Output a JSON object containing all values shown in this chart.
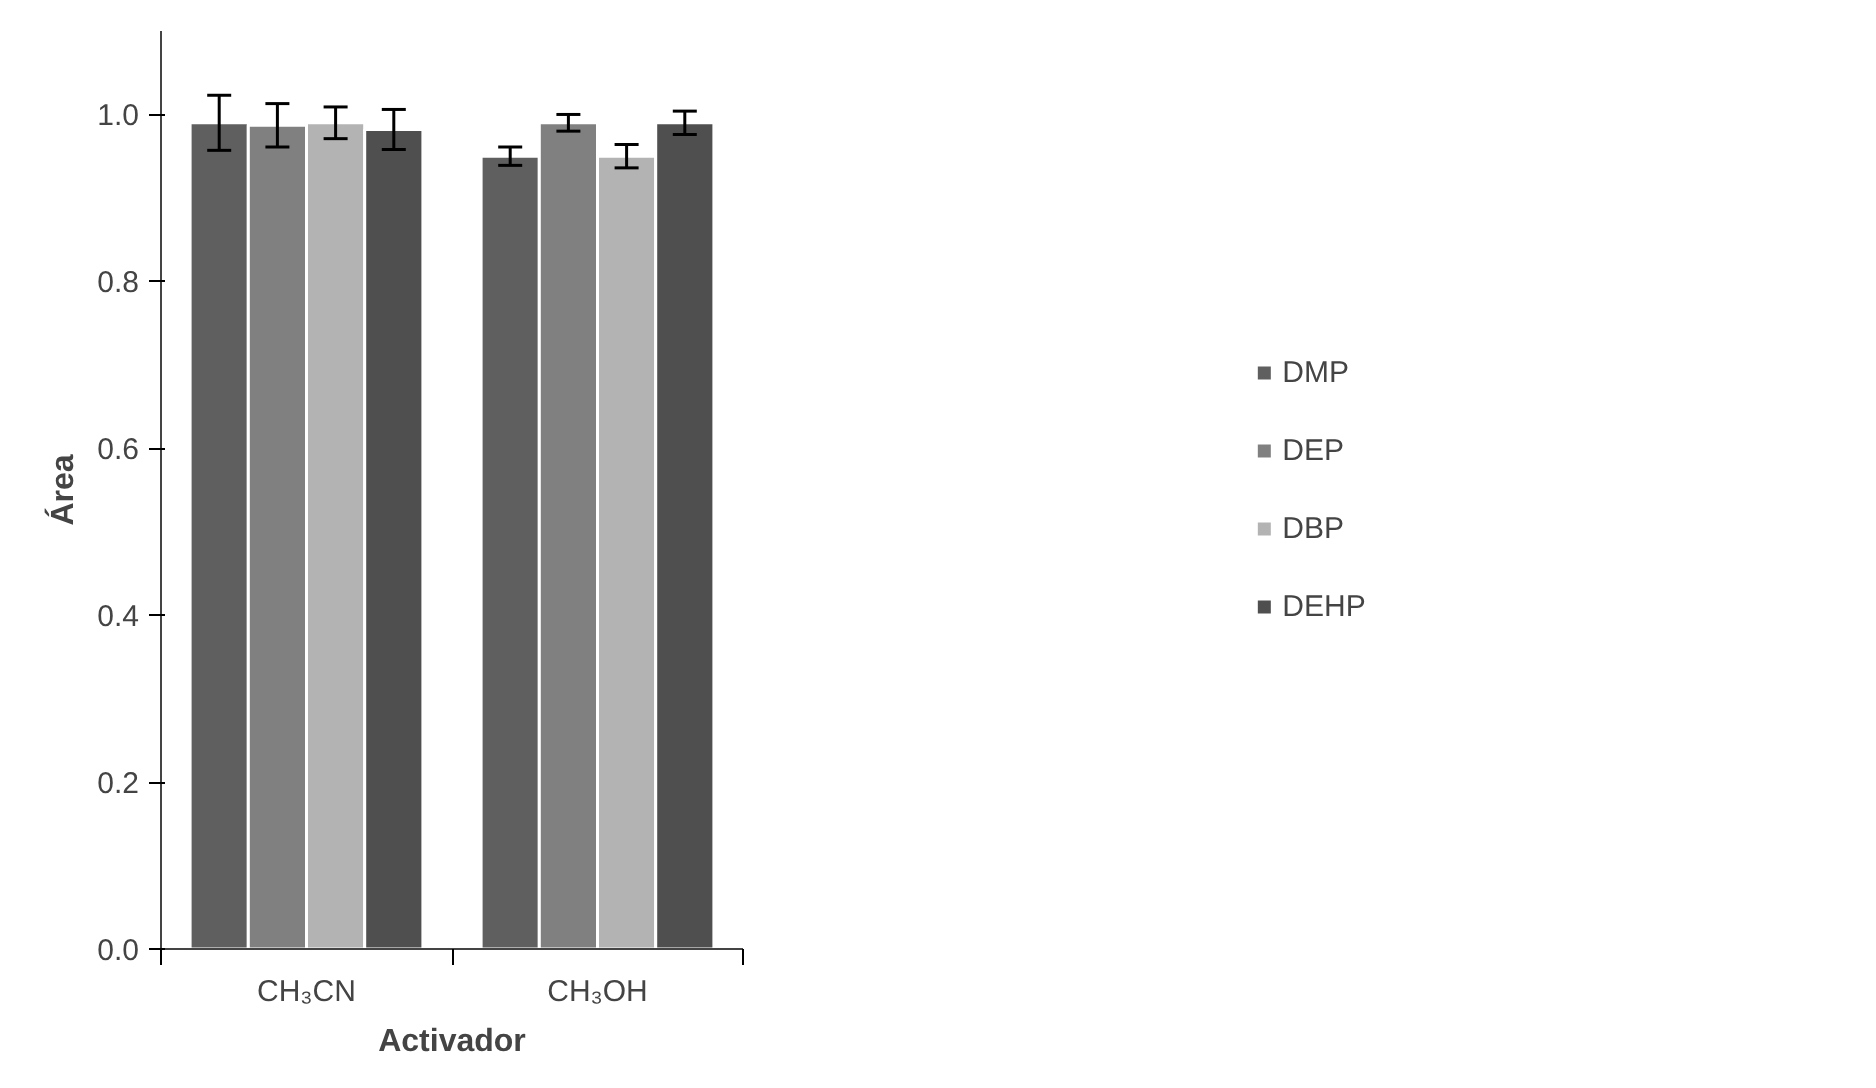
{
  "chart_data": {
    "type": "bar",
    "xlabel": "Activador",
    "ylabel": "Área",
    "categories": [
      "CH₃CN",
      "CH₃OH"
    ],
    "series": [
      {
        "name": "DMP",
        "color": "#5f5f5f",
        "values": [
          0.99,
          0.95
        ],
        "errors": [
          0.033,
          0.011
        ]
      },
      {
        "name": "DEP",
        "color": "#808080",
        "values": [
          0.987,
          0.99
        ],
        "errors": [
          0.026,
          0.01
        ]
      },
      {
        "name": "DBP",
        "color": "#b3b3b3",
        "values": [
          0.99,
          0.95
        ],
        "errors": [
          0.019,
          0.014
        ]
      },
      {
        "name": "DEHP",
        "color": "#4f4f4f",
        "values": [
          0.982,
          0.99
        ],
        "errors": [
          0.024,
          0.014
        ]
      }
    ],
    "ylim": [
      0,
      1.1
    ],
    "yticks": [
      {
        "value": 0,
        "label": "0.0"
      },
      0.2,
      0.4,
      0.6,
      0.8,
      {
        "value": 1,
        "label": "1.0"
      }
    ],
    "grid": false,
    "legend": "right"
  }
}
